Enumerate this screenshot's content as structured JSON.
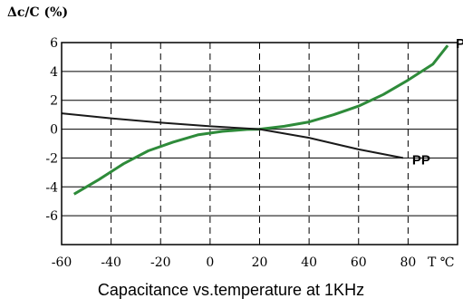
{
  "chart_data": {
    "type": "line",
    "title": "Capacitance vs.temperature at 1KHz",
    "ylabel": "Δc/C (%)",
    "xlabel": "T ℃",
    "xlim": [
      -60,
      100
    ],
    "ylim": [
      -8,
      6
    ],
    "x_ticks": [
      -60,
      -40,
      -20,
      0,
      20,
      40,
      60,
      80
    ],
    "y_ticks": [
      6,
      4,
      2,
      0,
      -2,
      -4,
      -6
    ],
    "grid": "dashed vertical at x ticks, solid horizontal at y ticks",
    "series": [
      {
        "name": "PE",
        "color": "#2e8b3a",
        "points": [
          [
            -55,
            -4.5
          ],
          [
            -45,
            -3.5
          ],
          [
            -35,
            -2.4
          ],
          [
            -25,
            -1.5
          ],
          [
            -15,
            -0.9
          ],
          [
            -5,
            -0.4
          ],
          [
            5,
            -0.15
          ],
          [
            15,
            -0.02
          ],
          [
            20,
            0.0
          ],
          [
            30,
            0.2
          ],
          [
            40,
            0.5
          ],
          [
            50,
            1.0
          ],
          [
            60,
            1.6
          ],
          [
            70,
            2.4
          ],
          [
            80,
            3.4
          ],
          [
            90,
            4.5
          ],
          [
            96,
            5.8
          ]
        ]
      },
      {
        "name": "PP",
        "color": "#1a1a1a",
        "points": [
          [
            -60,
            1.1
          ],
          [
            -40,
            0.75
          ],
          [
            -20,
            0.45
          ],
          [
            0,
            0.2
          ],
          [
            20,
            0.0
          ],
          [
            40,
            -0.6
          ],
          [
            60,
            -1.4
          ],
          [
            78,
            -2.0
          ]
        ]
      }
    ]
  }
}
